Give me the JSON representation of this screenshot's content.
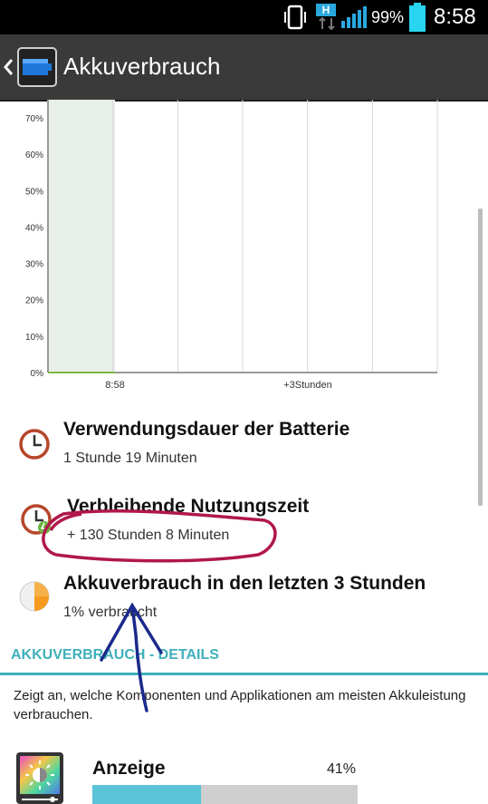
{
  "status_bar": {
    "network_badge": "H",
    "battery_percent": "99%",
    "time": "8:58",
    "icons": [
      "vibrate-icon",
      "network-h-icon",
      "signal-icon",
      "battery-icon"
    ]
  },
  "action_bar": {
    "title": "Akkuverbrauch",
    "icons": [
      "back-chevron-icon",
      "battery-app-icon"
    ]
  },
  "chart_data": {
    "type": "area",
    "y_tick_labels": [
      "70%",
      "60%",
      "50%",
      "40%",
      "30%",
      "20%",
      "10%",
      "0%"
    ],
    "x_tick_labels": [
      "8:58",
      "+3Stunden"
    ],
    "ylim": [
      0,
      75
    ],
    "grid": true,
    "series": [
      {
        "x": [
          "start",
          "8:58"
        ],
        "values": [
          0,
          0
        ]
      }
    ],
    "shaded_past_region": true
  },
  "stats": [
    {
      "title": "Verwendungsdauer der Batterie",
      "value": "1 Stunde 19 Minuten",
      "icon": "clock-icon"
    },
    {
      "title": "Verbleibende Nutzungszeit",
      "value": "+ 130 Stunden 8 Minuten",
      "icon": "clock-charging-icon"
    },
    {
      "title": "Akkuverbrauch in den letzten 3 Stunden",
      "value": "1% verbraucht",
      "icon": "pie-usage-icon"
    }
  ],
  "details": {
    "header": "AKKUVERBRAUCH - DETAILS",
    "description": "Zeigt an, welche Komponenten und Applikationen am meisten Akkuleistung verbrauchen."
  },
  "apps": [
    {
      "name": "Anzeige",
      "percent_label": "41%",
      "percent": 41,
      "icon": "display-brightness-icon",
      "bar_color": "#5bc4d8"
    }
  ],
  "colors": {
    "accent": "#3fb0bb",
    "action_bar": "#3a3a3a",
    "annotation_circle": "#b0184a",
    "annotation_arrow": "#1a2a8c"
  }
}
